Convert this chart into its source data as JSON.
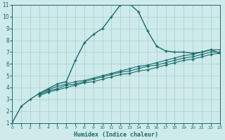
{
  "xlabel": "Humidex (Indice chaleur)",
  "bg_color": "#ceeaea",
  "line_color": "#1a6b6b",
  "grid_color": "#aacece",
  "xlim": [
    0,
    23
  ],
  "ylim": [
    1,
    11
  ],
  "xticks": [
    0,
    1,
    2,
    3,
    4,
    5,
    6,
    7,
    8,
    9,
    10,
    11,
    12,
    13,
    14,
    15,
    16,
    17,
    18,
    19,
    20,
    21,
    22,
    23
  ],
  "yticks": [
    1,
    2,
    3,
    4,
    5,
    6,
    7,
    8,
    9,
    10,
    11
  ],
  "series": [
    {
      "x": [
        0,
        1,
        2,
        3,
        4,
        5,
        6,
        7,
        8,
        9,
        10,
        11,
        12,
        13,
        14,
        15,
        16,
        17,
        18,
        19,
        20,
        21,
        22,
        23
      ],
      "y": [
        1.0,
        2.4,
        3.0,
        3.5,
        3.9,
        4.3,
        4.5,
        6.3,
        7.8,
        8.5,
        9.0,
        10.0,
        11.0,
        11.1,
        10.4,
        8.8,
        7.5,
        7.1,
        7.0,
        7.0,
        6.9,
        7.0,
        7.2,
        6.9
      ]
    },
    {
      "x": [
        3,
        4,
        5,
        6,
        7,
        8,
        9,
        10,
        11,
        12,
        13,
        14,
        15,
        16,
        17,
        18,
        19,
        20,
        21,
        22,
        23
      ],
      "y": [
        3.5,
        3.8,
        4.1,
        4.3,
        4.5,
        4.6,
        4.8,
        5.0,
        5.2,
        5.4,
        5.6,
        5.8,
        5.9,
        6.1,
        6.3,
        6.5,
        6.7,
        6.8,
        7.0,
        7.2,
        7.2
      ]
    },
    {
      "x": [
        3,
        4,
        5,
        6,
        7,
        8,
        9,
        10,
        11,
        12,
        13,
        14,
        15,
        16,
        17,
        18,
        19,
        20,
        21,
        22,
        23
      ],
      "y": [
        3.4,
        3.7,
        3.9,
        4.2,
        4.3,
        4.5,
        4.7,
        4.9,
        5.1,
        5.3,
        5.4,
        5.6,
        5.8,
        5.9,
        6.1,
        6.3,
        6.5,
        6.6,
        6.8,
        7.0,
        7.0
      ]
    },
    {
      "x": [
        3,
        4,
        5,
        6,
        7,
        8,
        9,
        10,
        11,
        12,
        13,
        14,
        15,
        16,
        17,
        18,
        19,
        20,
        21,
        22,
        23
      ],
      "y": [
        3.3,
        3.6,
        3.8,
        4.0,
        4.2,
        4.4,
        4.5,
        4.7,
        4.9,
        5.1,
        5.2,
        5.4,
        5.5,
        5.7,
        5.9,
        6.1,
        6.3,
        6.4,
        6.6,
        6.8,
        6.9
      ]
    }
  ]
}
